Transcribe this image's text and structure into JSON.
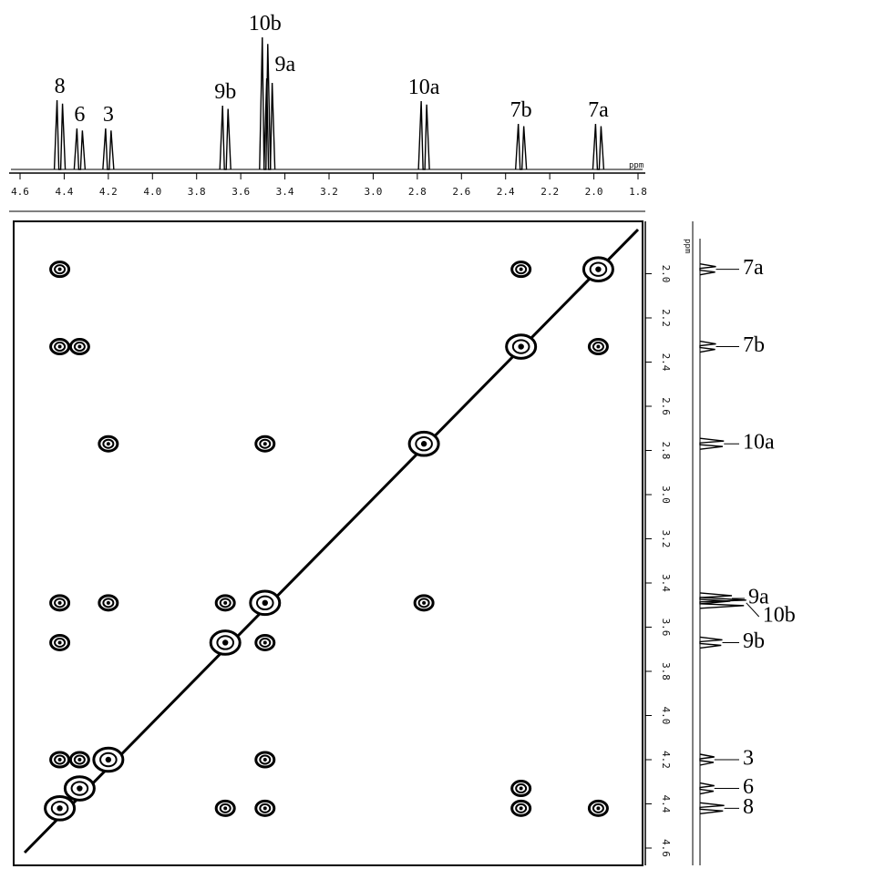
{
  "chart_data": {
    "type": "cosy",
    "x_unit": "ppm",
    "y_unit": "ppm",
    "xlim": [
      4.6,
      1.8
    ],
    "ylim": [
      1.8,
      4.6
    ],
    "xticks": [
      4.6,
      4.4,
      4.2,
      {
        "value": 4,
        "label": "4.0"
      },
      3.8,
      3.6,
      3.4,
      3.2,
      {
        "value": 3,
        "label": "3.0"
      },
      2.8,
      2.6,
      2.4,
      2.2,
      {
        "value": 2,
        "label": "2.0"
      },
      1.8
    ],
    "yticks": [
      {
        "value": 2,
        "label": "2.0"
      },
      2.2,
      2.4,
      2.6,
      2.8,
      {
        "value": 3,
        "label": "3.0"
      },
      3.2,
      3.4,
      3.6,
      3.8,
      {
        "value": 4,
        "label": "4.0"
      },
      4.2,
      4.4,
      4.6
    ],
    "peaks": [
      {
        "label": "8",
        "shift": 4.42,
        "height": 76
      },
      {
        "label": "6",
        "shift": 4.33,
        "height": 45
      },
      {
        "label": "3",
        "shift": 4.2,
        "height": 45
      },
      {
        "label": "9b",
        "shift": 3.67,
        "height": 70
      },
      {
        "label": "10b",
        "shift": 3.49,
        "height": 145
      },
      {
        "label": "9a",
        "shift": 3.47,
        "height": 100
      },
      {
        "label": "10a",
        "shift": 2.77,
        "height": 75
      },
      {
        "label": "7b",
        "shift": 2.33,
        "height": 50
      },
      {
        "label": "7a",
        "shift": 1.98,
        "height": 50
      }
    ],
    "cross_peaks": {
      "x": [
        4.42,
        2.33,
        1.98,
        4.42,
        4.33,
        2.33,
        1.98,
        4.2,
        3.49,
        2.77,
        4.42,
        4.2,
        3.67,
        3.49,
        2.77,
        4.42,
        3.67,
        3.49,
        4.42,
        4.33,
        4.2,
        3.49,
        4.33,
        2.33,
        4.42,
        3.67,
        3.49,
        2.33,
        1.98
      ],
      "y": [
        1.98,
        1.98,
        1.98,
        2.33,
        2.33,
        2.33,
        2.33,
        2.77,
        2.77,
        2.77,
        3.49,
        3.49,
        3.49,
        3.49,
        3.49,
        3.67,
        3.67,
        3.67,
        4.2,
        4.2,
        4.2,
        4.2,
        4.33,
        4.33,
        4.42,
        4.42,
        4.42,
        4.42,
        4.42
      ]
    }
  }
}
